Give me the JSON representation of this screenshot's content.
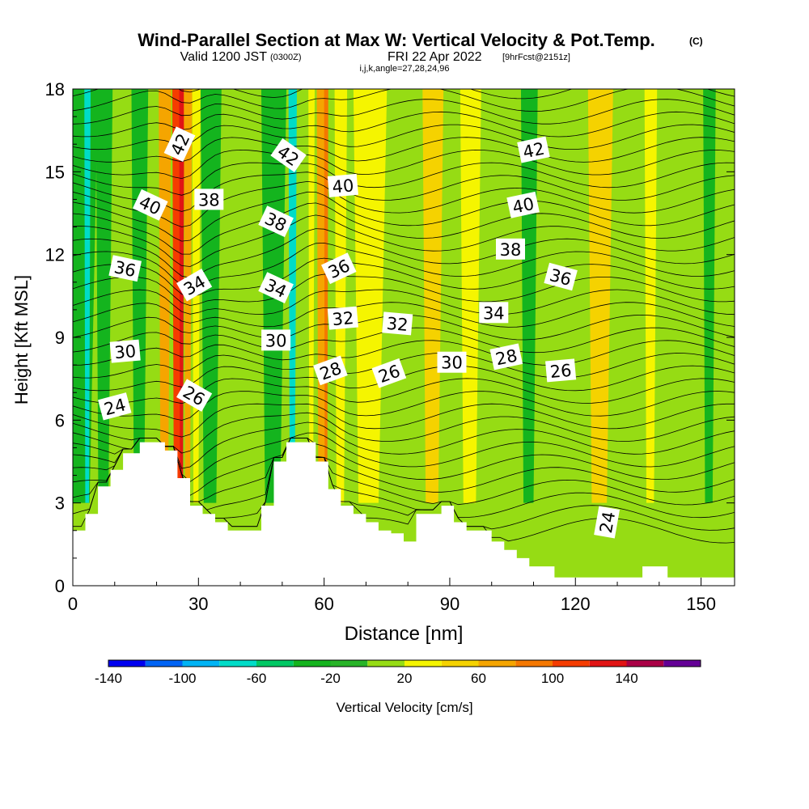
{
  "chart_data": {
    "type": "heatmap",
    "title": "Wind-Parallel Section at Max W: Vertical Velocity & Pot.Temp.",
    "copyright": "(C)",
    "subtitle_main": "Valid 1200 JST",
    "subtitle_utc": "(0300Z)",
    "subtitle_date": "FRI 22 Apr 2022",
    "subtitle_fcst": "[9hrFcst@2151z]",
    "subtitle_indices": "i,j,k,angle=27,28,24,96",
    "xlabel": "Distance [nm]",
    "ylabel": "Height [Kft MSL]",
    "xlim": [
      0,
      158
    ],
    "ylim": [
      0,
      18
    ],
    "x_ticks": [
      "0",
      "30",
      "60",
      "90",
      "120",
      "150"
    ],
    "y_ticks": [
      "0",
      "3",
      "6",
      "9",
      "12",
      "15",
      "18"
    ],
    "colorbar": {
      "label": "Vertical Velocity [cm/s]",
      "tick_labels": [
        "-140",
        "-100",
        "-60",
        "-20",
        "20",
        "60",
        "100",
        "140"
      ],
      "levels": [
        -140,
        -120,
        -100,
        -80,
        -60,
        -40,
        -20,
        0,
        20,
        40,
        60,
        80,
        100,
        120,
        140,
        160
      ],
      "colors": [
        "#0000f0",
        "#0064f5",
        "#00b4f5",
        "#00dcc8",
        "#00c864",
        "#14b41e",
        "#28b428",
        "#96dc14",
        "#f5f500",
        "#f5d200",
        "#f5a500",
        "#f57800",
        "#f53c00",
        "#e11414",
        "#aa0046",
        "#640096"
      ]
    },
    "vertical_velocity_columns": [
      {
        "x": 2,
        "w": 8,
        "value": -30
      },
      {
        "x": 3.5,
        "w": 1.5,
        "value": -65
      },
      {
        "x": 7.5,
        "w": 4,
        "value": -35
      },
      {
        "x": 16,
        "w": 4,
        "value": -35
      },
      {
        "x": 22,
        "w": 3,
        "value": 70
      },
      {
        "x": 25,
        "w": 2.5,
        "value": 105
      },
      {
        "x": 26,
        "w": 1.2,
        "value": 130
      },
      {
        "x": 27.5,
        "w": 2,
        "value": 70
      },
      {
        "x": 29.5,
        "w": 2,
        "value": 30
      },
      {
        "x": 33,
        "w": 5,
        "value": -25
      },
      {
        "x": 48,
        "w": 6,
        "value": -35
      },
      {
        "x": 52.5,
        "w": 2,
        "value": -70
      },
      {
        "x": 57,
        "w": 1.5,
        "value": 30
      },
      {
        "x": 59.5,
        "w": 2.5,
        "value": 70
      },
      {
        "x": 60.5,
        "w": 1,
        "value": 90
      },
      {
        "x": 64,
        "w": 3,
        "value": 25
      },
      {
        "x": 71,
        "w": 8,
        "value": 25
      },
      {
        "x": 86,
        "w": 5,
        "value": 40
      },
      {
        "x": 95,
        "w": 5,
        "value": 25
      },
      {
        "x": 109,
        "w": 4,
        "value": -30
      },
      {
        "x": 126,
        "w": 6,
        "value": 40
      },
      {
        "x": 138,
        "w": 3,
        "value": 25
      },
      {
        "x": 152,
        "w": 3,
        "value": -25
      }
    ],
    "theta_labels": [
      {
        "text": "42",
        "x": 25.5,
        "y": 16.0,
        "angle": -65
      },
      {
        "text": "42",
        "x": 51.5,
        "y": 15.6,
        "angle": 35
      },
      {
        "text": "42",
        "x": 110,
        "y": 15.8,
        "angle": -12
      },
      {
        "text": "40",
        "x": 18.5,
        "y": 13.8,
        "angle": 25
      },
      {
        "text": "40",
        "x": 64.5,
        "y": 14.5,
        "angle": -5
      },
      {
        "text": "40",
        "x": 107.5,
        "y": 13.8,
        "angle": -12
      },
      {
        "text": "38",
        "x": 32.5,
        "y": 14.0,
        "angle": 0
      },
      {
        "text": "38",
        "x": 48.5,
        "y": 13.2,
        "angle": 25
      },
      {
        "text": "38",
        "x": 104.5,
        "y": 12.2,
        "angle": 0
      },
      {
        "text": "36",
        "x": 12.5,
        "y": 11.5,
        "angle": 12
      },
      {
        "text": "36",
        "x": 63.5,
        "y": 11.5,
        "angle": -25
      },
      {
        "text": "36",
        "x": 116.5,
        "y": 11.2,
        "angle": 15
      },
      {
        "text": "34",
        "x": 29.0,
        "y": 10.9,
        "angle": -30
      },
      {
        "text": "34",
        "x": 48.5,
        "y": 10.8,
        "angle": 25
      },
      {
        "text": "34",
        "x": 100.5,
        "y": 9.9,
        "angle": 0
      },
      {
        "text": "32",
        "x": 64.5,
        "y": 9.7,
        "angle": -5
      },
      {
        "text": "32",
        "x": 77.5,
        "y": 9.5,
        "angle": 5
      },
      {
        "text": "30",
        "x": 12.5,
        "y": 8.5,
        "angle": -5
      },
      {
        "text": "30",
        "x": 48.5,
        "y": 8.9,
        "angle": 0
      },
      {
        "text": "30",
        "x": 90.5,
        "y": 8.1,
        "angle": 0
      },
      {
        "text": "28",
        "x": 61.5,
        "y": 7.8,
        "angle": -20
      },
      {
        "text": "28",
        "x": 103.5,
        "y": 8.3,
        "angle": -12
      },
      {
        "text": "26",
        "x": 29.0,
        "y": 6.9,
        "angle": 30
      },
      {
        "text": "26",
        "x": 75.5,
        "y": 7.7,
        "angle": -20
      },
      {
        "text": "26",
        "x": 116.5,
        "y": 7.8,
        "angle": -5
      },
      {
        "text": "24",
        "x": 10.0,
        "y": 6.5,
        "angle": -15
      },
      {
        "text": "24",
        "x": 127.5,
        "y": 2.3,
        "angle": -80
      }
    ],
    "terrain_kft": [
      [
        0,
        2.0
      ],
      [
        3,
        2.0
      ],
      [
        3,
        2.6
      ],
      [
        6,
        2.6
      ],
      [
        6,
        3.6
      ],
      [
        9,
        3.6
      ],
      [
        9,
        4.2
      ],
      [
        12,
        4.2
      ],
      [
        12,
        4.8
      ],
      [
        16,
        4.8
      ],
      [
        16,
        5.2
      ],
      [
        22,
        5.2
      ],
      [
        22,
        4.9
      ],
      [
        25,
        4.9
      ],
      [
        25,
        3.9
      ],
      [
        28,
        3.9
      ],
      [
        28,
        2.9
      ],
      [
        31,
        2.9
      ],
      [
        31,
        2.6
      ],
      [
        34,
        2.6
      ],
      [
        34,
        2.3
      ],
      [
        37,
        2.3
      ],
      [
        37,
        2.0
      ],
      [
        45,
        2.0
      ],
      [
        45,
        2.9
      ],
      [
        48,
        2.9
      ],
      [
        48,
        4.5
      ],
      [
        51,
        4.5
      ],
      [
        51,
        5.2
      ],
      [
        58,
        5.2
      ],
      [
        58,
        4.5
      ],
      [
        61,
        4.5
      ],
      [
        61,
        3.5
      ],
      [
        64,
        3.5
      ],
      [
        64,
        2.9
      ],
      [
        67,
        2.9
      ],
      [
        67,
        2.6
      ],
      [
        70,
        2.6
      ],
      [
        70,
        2.3
      ],
      [
        73,
        2.3
      ],
      [
        73,
        2.0
      ],
      [
        76,
        2.0
      ],
      [
        76,
        1.9
      ],
      [
        79,
        1.9
      ],
      [
        79,
        1.6
      ],
      [
        82,
        1.6
      ],
      [
        82,
        2.6
      ],
      [
        88,
        2.6
      ],
      [
        88,
        2.9
      ],
      [
        91,
        2.9
      ],
      [
        91,
        2.3
      ],
      [
        94,
        2.3
      ],
      [
        94,
        2.0
      ],
      [
        97,
        2.0
      ],
      [
        97,
        2.0
      ],
      [
        100,
        2.0
      ],
      [
        100,
        1.6
      ],
      [
        103,
        1.6
      ],
      [
        103,
        1.3
      ],
      [
        106,
        1.3
      ],
      [
        106,
        1.0
      ],
      [
        109,
        1.0
      ],
      [
        109,
        0.7
      ],
      [
        115,
        0.7
      ],
      [
        115,
        0.3
      ],
      [
        119,
        0.3
      ],
      [
        119,
        0.3
      ],
      [
        136,
        0.3
      ],
      [
        136,
        0.7
      ],
      [
        142,
        0.7
      ],
      [
        142,
        0.3
      ],
      [
        149,
        0.3
      ],
      [
        149,
        0.3
      ],
      [
        158,
        0.3
      ]
    ]
  }
}
